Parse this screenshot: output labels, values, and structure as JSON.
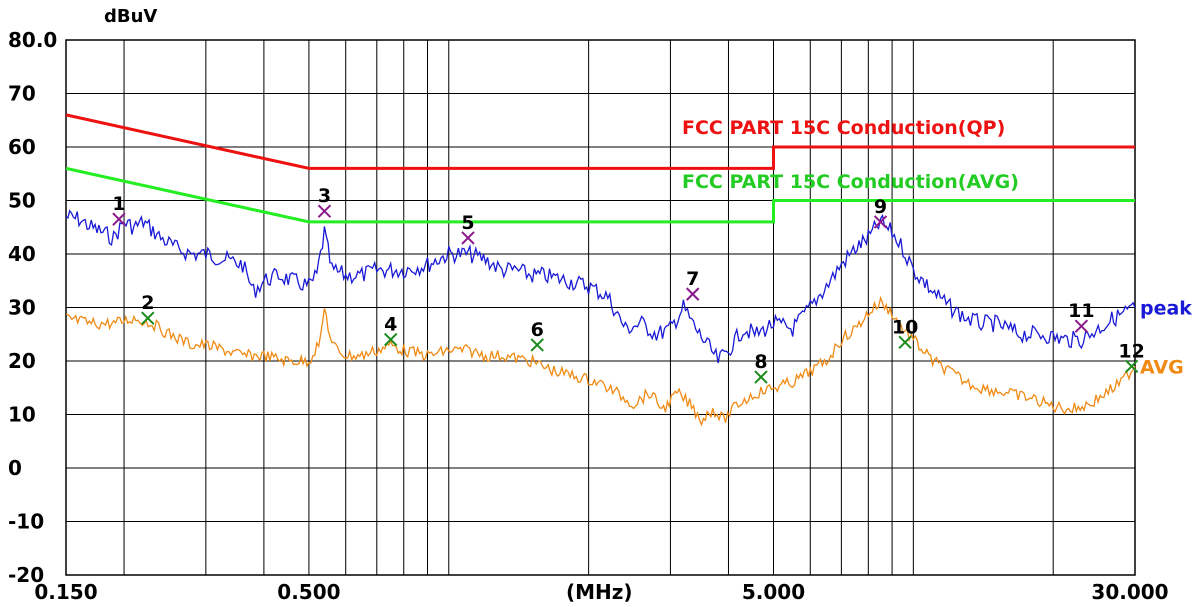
{
  "chart_data": {
    "type": "line",
    "title": "",
    "ylabel": "dBuV",
    "xlabel": "(MHz)",
    "x_scale": "log",
    "xlim": [
      0.15,
      30
    ],
    "ylim": [
      -20,
      80
    ],
    "y_ticks": [
      -20,
      -10,
      0,
      10,
      20,
      30,
      40,
      50,
      60,
      70,
      80
    ],
    "y_tick_labels": [
      "-20",
      "-10",
      "0",
      "10",
      "20",
      "30",
      "40",
      "50",
      "60",
      "70",
      "80.0"
    ],
    "x_tick_labels": [
      {
        "x": 0.15,
        "label": "0.150"
      },
      {
        "x": 0.5,
        "label": "0.500"
      },
      {
        "x": 5,
        "label": "5.000"
      },
      {
        "x": 30,
        "label": "30.000"
      }
    ],
    "grid": true,
    "limit_lines": [
      {
        "name": "FCC PART 15C  Conduction(QP)",
        "color": "#ee1111",
        "points": [
          [
            0.15,
            66
          ],
          [
            0.5,
            56
          ],
          [
            5,
            56
          ],
          [
            5,
            60
          ],
          [
            30,
            60
          ]
        ]
      },
      {
        "name": "FCC PART 15C  Conduction(AVG)",
        "color": "#22ee22",
        "points": [
          [
            0.15,
            56
          ],
          [
            0.5,
            46
          ],
          [
            5,
            46
          ],
          [
            5,
            50
          ],
          [
            30,
            50
          ]
        ]
      }
    ],
    "series": [
      {
        "name": "peak",
        "color": "#1a1ad6",
        "points": [
          [
            0.15,
            47
          ],
          [
            0.16,
            46.5
          ],
          [
            0.17,
            45
          ],
          [
            0.18,
            44
          ],
          [
            0.19,
            43
          ],
          [
            0.2,
            46
          ],
          [
            0.21,
            45
          ],
          [
            0.22,
            46
          ],
          [
            0.24,
            43
          ],
          [
            0.26,
            41
          ],
          [
            0.28,
            40
          ],
          [
            0.3,
            40
          ],
          [
            0.33,
            39
          ],
          [
            0.36,
            38
          ],
          [
            0.38,
            33
          ],
          [
            0.4,
            35
          ],
          [
            0.43,
            36
          ],
          [
            0.46,
            35
          ],
          [
            0.5,
            34
          ],
          [
            0.52,
            36
          ],
          [
            0.54,
            44
          ],
          [
            0.56,
            37
          ],
          [
            0.6,
            36
          ],
          [
            0.65,
            36
          ],
          [
            0.7,
            37
          ],
          [
            0.75,
            37
          ],
          [
            0.8,
            37
          ],
          [
            0.9,
            38
          ],
          [
            1.0,
            40
          ],
          [
            1.1,
            40
          ],
          [
            1.2,
            39
          ],
          [
            1.3,
            37
          ],
          [
            1.4,
            37
          ],
          [
            1.5,
            36
          ],
          [
            1.6,
            36
          ],
          [
            1.8,
            35
          ],
          [
            2.0,
            34
          ],
          [
            2.2,
            32
          ],
          [
            2.4,
            26
          ],
          [
            2.6,
            27
          ],
          [
            2.8,
            25
          ],
          [
            3.0,
            26
          ],
          [
            3.2,
            30
          ],
          [
            3.4,
            26
          ],
          [
            3.6,
            23
          ],
          [
            3.8,
            20
          ],
          [
            4.0,
            22
          ],
          [
            4.3,
            26
          ],
          [
            4.6,
            25
          ],
          [
            5.0,
            27
          ],
          [
            5.5,
            26
          ],
          [
            6.0,
            30
          ],
          [
            6.5,
            34
          ],
          [
            7.0,
            38
          ],
          [
            7.5,
            41
          ],
          [
            8.0,
            43
          ],
          [
            8.5,
            46
          ],
          [
            9.0,
            44
          ],
          [
            9.5,
            41
          ],
          [
            10.0,
            37
          ],
          [
            11.0,
            33
          ],
          [
            12.0,
            30
          ],
          [
            13.0,
            28
          ],
          [
            14.0,
            27
          ],
          [
            15.0,
            27
          ],
          [
            17.0,
            25
          ],
          [
            19.0,
            25
          ],
          [
            21.0,
            24
          ],
          [
            23.0,
            24
          ],
          [
            25.0,
            26
          ],
          [
            27.0,
            28
          ],
          [
            30.0,
            30
          ]
        ]
      },
      {
        "name": "AVG",
        "color": "#f08a14",
        "points": [
          [
            0.15,
            28
          ],
          [
            0.17,
            27
          ],
          [
            0.19,
            27
          ],
          [
            0.21,
            28
          ],
          [
            0.23,
            27
          ],
          [
            0.25,
            25
          ],
          [
            0.28,
            23
          ],
          [
            0.3,
            23
          ],
          [
            0.33,
            22
          ],
          [
            0.36,
            21
          ],
          [
            0.4,
            21
          ],
          [
            0.45,
            20
          ],
          [
            0.5,
            20
          ],
          [
            0.53,
            24
          ],
          [
            0.54,
            30
          ],
          [
            0.56,
            23
          ],
          [
            0.6,
            21
          ],
          [
            0.65,
            21
          ],
          [
            0.7,
            22
          ],
          [
            0.75,
            23
          ],
          [
            0.8,
            22
          ],
          [
            0.9,
            21
          ],
          [
            1.0,
            22
          ],
          [
            1.1,
            22
          ],
          [
            1.2,
            21
          ],
          [
            1.3,
            21
          ],
          [
            1.5,
            20
          ],
          [
            1.7,
            18
          ],
          [
            1.9,
            17
          ],
          [
            2.1,
            16
          ],
          [
            2.3,
            14
          ],
          [
            2.5,
            12
          ],
          [
            2.7,
            14
          ],
          [
            2.9,
            11
          ],
          [
            3.1,
            14
          ],
          [
            3.3,
            12
          ],
          [
            3.5,
            9
          ],
          [
            3.7,
            11
          ],
          [
            3.9,
            9
          ],
          [
            4.2,
            12
          ],
          [
            4.6,
            14
          ],
          [
            5.0,
            15
          ],
          [
            5.5,
            16
          ],
          [
            6.0,
            18
          ],
          [
            6.5,
            20
          ],
          [
            7.0,
            24
          ],
          [
            7.5,
            26
          ],
          [
            8.0,
            29
          ],
          [
            8.5,
            31
          ],
          [
            9.0,
            29
          ],
          [
            9.5,
            26
          ],
          [
            10.0,
            24
          ],
          [
            11.0,
            20
          ],
          [
            12.0,
            18
          ],
          [
            13.0,
            16
          ],
          [
            14.0,
            15
          ],
          [
            16.0,
            14
          ],
          [
            18.0,
            13
          ],
          [
            20.0,
            11.5
          ],
          [
            22.0,
            11
          ],
          [
            24.0,
            12
          ],
          [
            26.0,
            14
          ],
          [
            28.0,
            16
          ],
          [
            30.0,
            19
          ]
        ]
      }
    ],
    "markers": [
      {
        "label": "1",
        "x": 0.195,
        "y": 46.5,
        "type": "peak",
        "color": "#8b1a8b"
      },
      {
        "label": "2",
        "x": 0.225,
        "y": 28,
        "type": "avg",
        "color": "#1a8b1a"
      },
      {
        "label": "3",
        "x": 0.54,
        "y": 48,
        "type": "peak",
        "color": "#8b1a8b"
      },
      {
        "label": "4",
        "x": 0.75,
        "y": 24,
        "type": "avg",
        "color": "#1a8b1a"
      },
      {
        "label": "5",
        "x": 1.1,
        "y": 43,
        "type": "peak",
        "color": "#8b1a8b"
      },
      {
        "label": "6",
        "x": 1.55,
        "y": 23,
        "type": "avg",
        "color": "#1a8b1a"
      },
      {
        "label": "7",
        "x": 3.35,
        "y": 32.5,
        "type": "peak",
        "color": "#8b1a8b"
      },
      {
        "label": "8",
        "x": 4.7,
        "y": 17,
        "type": "avg",
        "color": "#1a8b1a"
      },
      {
        "label": "9",
        "x": 8.5,
        "y": 46,
        "type": "peak",
        "color": "#8b1a8b"
      },
      {
        "label": "10",
        "x": 9.6,
        "y": 23.5,
        "type": "avg",
        "color": "#1a8b1a"
      },
      {
        "label": "11",
        "x": 23.0,
        "y": 26.5,
        "type": "peak",
        "color": "#8b1a8b"
      },
      {
        "label": "12",
        "x": 29.5,
        "y": 19,
        "type": "avg",
        "color": "#1a8b1a"
      }
    ]
  }
}
